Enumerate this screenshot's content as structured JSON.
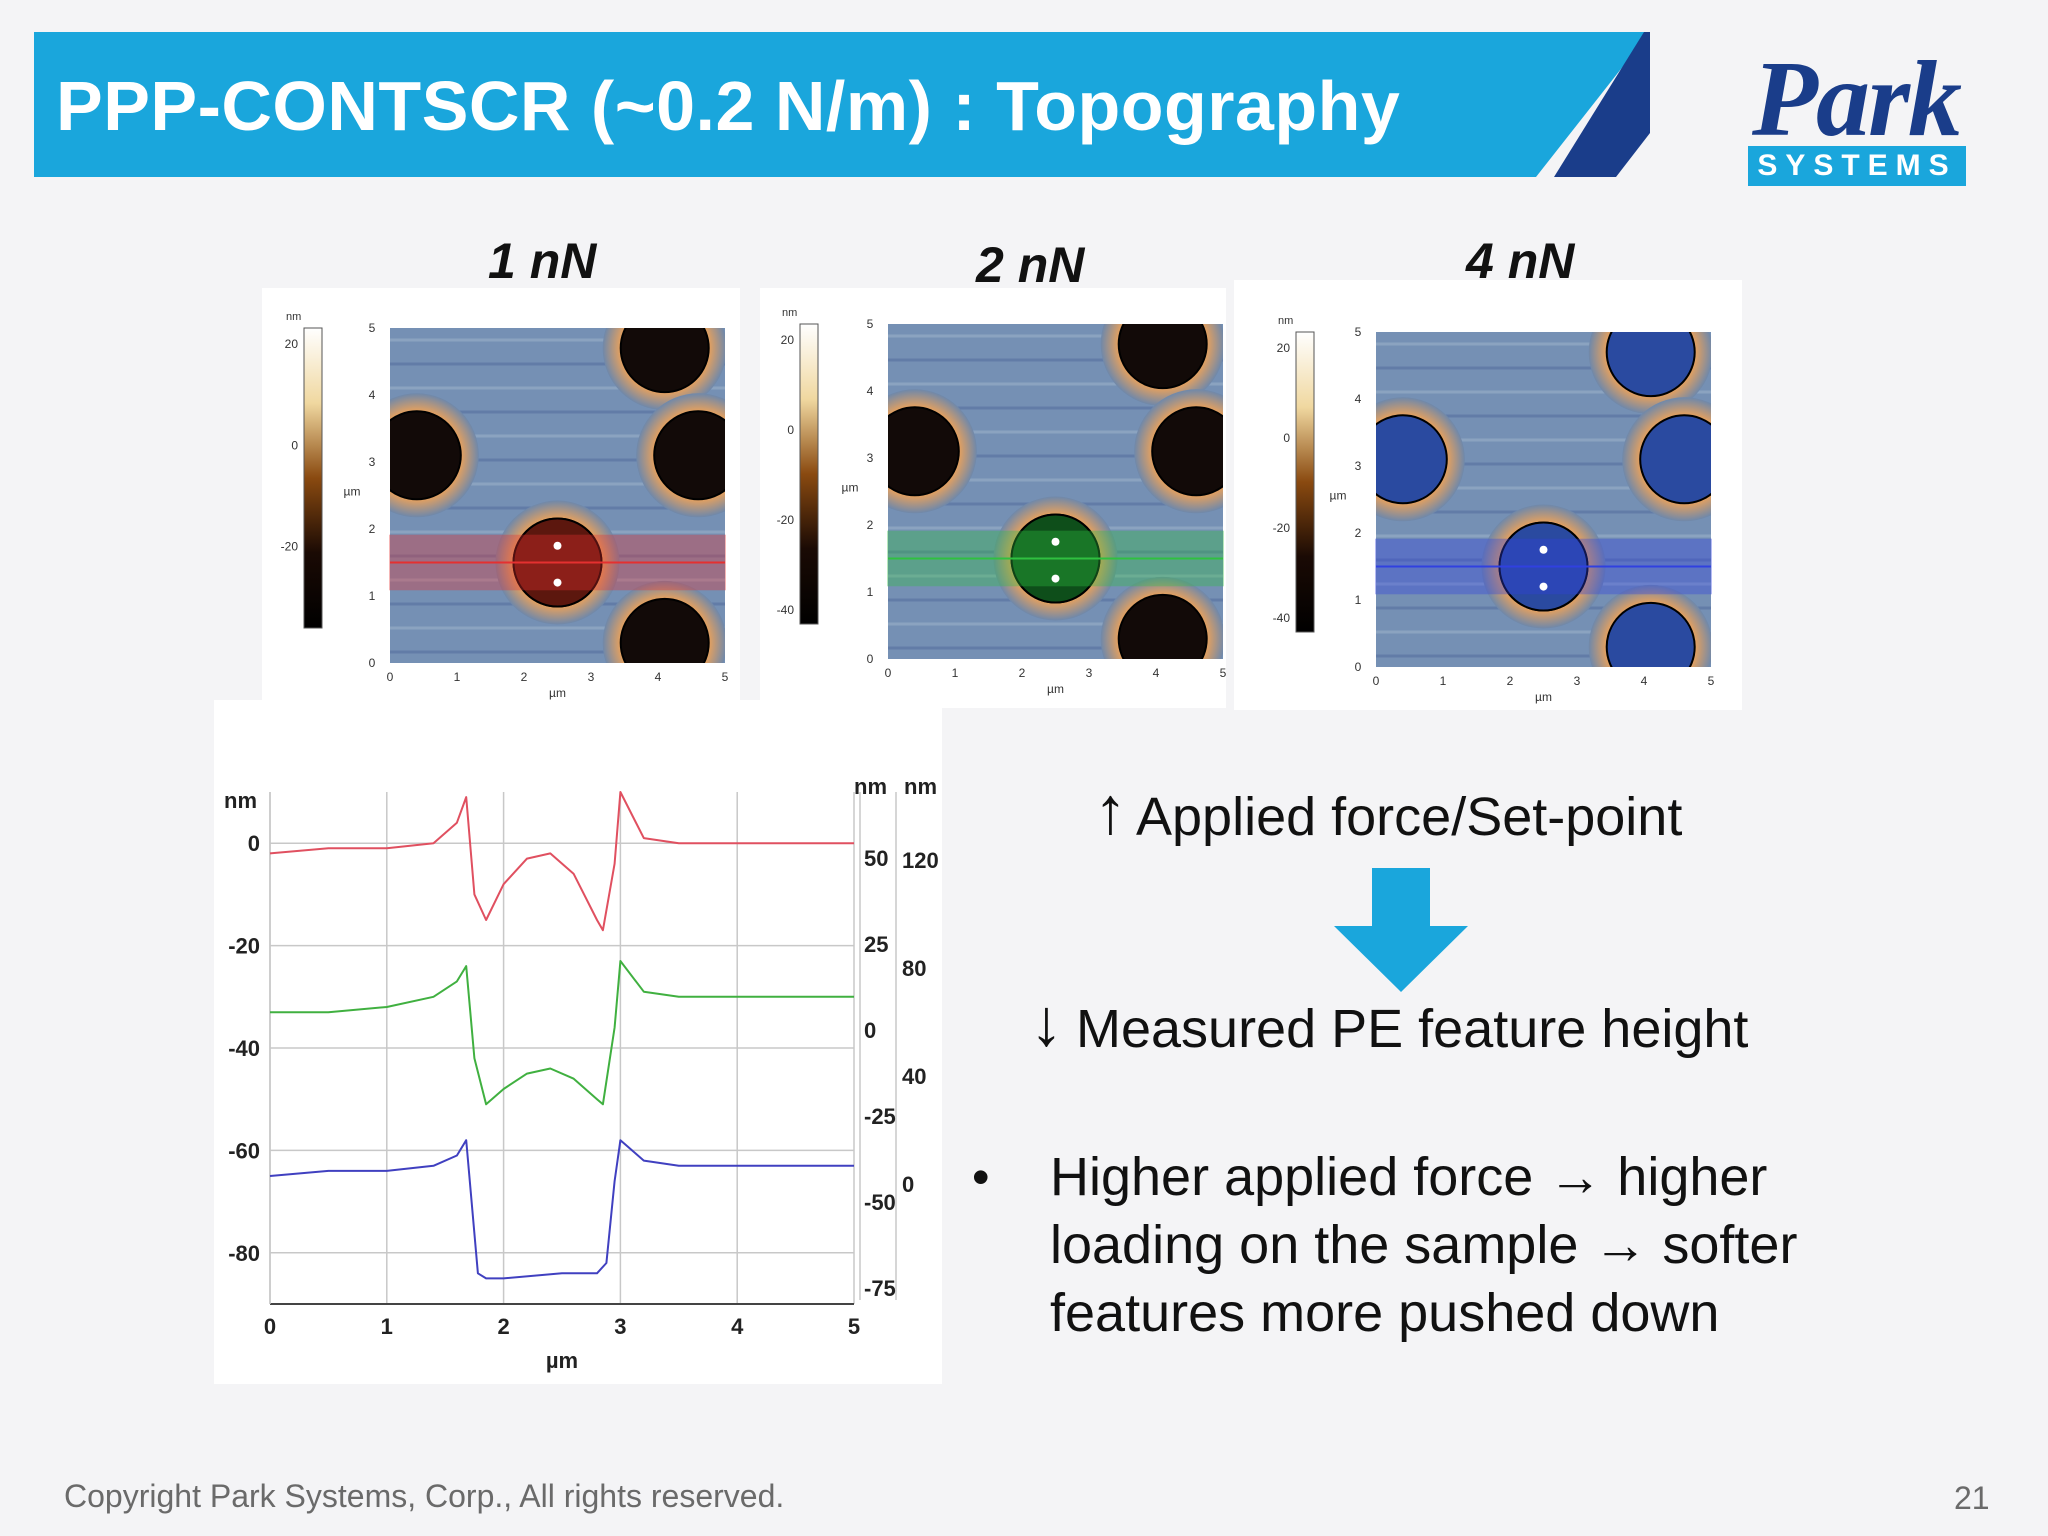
{
  "slide": {
    "title": "PPP-CONTSCR (~0.2 N/m) : Topography",
    "logo": {
      "name": "Park",
      "tagline": "SYSTEMS"
    },
    "force_labels": [
      "1 nN",
      "2 nN",
      "4 nN"
    ],
    "afm_images": [
      {
        "unit": "nm",
        "scale_ticks": [
          "20",
          "0",
          "-20"
        ],
        "axis_unit": "µm",
        "line_color": "#e53030",
        "feature_color": "#6a1a10"
      },
      {
        "unit": "nm",
        "scale_ticks": [
          "20",
          "0",
          "-20",
          "-40"
        ],
        "axis_unit": "µm",
        "line_color": "#30c040",
        "feature_color": "#0e5a1e"
      },
      {
        "unit": "nm",
        "scale_ticks": [
          "20",
          "0",
          "-20",
          "-40"
        ],
        "axis_unit": "µm",
        "line_color": "#3040e0",
        "feature_color": "#2a4aa0"
      }
    ],
    "afm_axis_ticks": [
      "0",
      "1",
      "2",
      "3",
      "4",
      "5"
    ],
    "statement1": "Applied force/Set-point",
    "statement2": "Measured PE feature height",
    "bullet": "Higher applied force → higher loading on the sample → softer features more pushed down",
    "bullet_lines": [
      "Higher applied force → higher",
      "loading on the sample → softer",
      "features more pushed down"
    ],
    "footer": "Copyright Park Systems, Corp., All rights reserved.",
    "page_number": "21"
  },
  "chart_data": {
    "type": "line",
    "xlabel": "µm",
    "ylabel": "nm",
    "xlim": [
      0,
      5
    ],
    "ylim": [
      -90,
      10
    ],
    "x_ticks": [
      "0",
      "1",
      "2",
      "3",
      "4",
      "5"
    ],
    "y_ticks": [
      "0",
      "-20",
      "-40",
      "-60",
      "-80"
    ],
    "right_axis1": {
      "label": "nm",
      "ticks": [
        "50",
        "25",
        "0",
        "-25",
        "-50",
        "-75"
      ]
    },
    "right_axis2": {
      "label": "nm",
      "ticks": [
        "120",
        "80",
        "40",
        "0"
      ]
    },
    "grid": true,
    "legend": "none",
    "series": [
      {
        "color": "#e05060",
        "x": [
          0,
          0.5,
          1.0,
          1.4,
          1.6,
          1.68,
          1.75,
          1.85,
          2.0,
          2.2,
          2.4,
          2.6,
          2.8,
          2.85,
          2.95,
          3.0,
          3.2,
          3.5,
          4.0,
          4.5,
          5.0
        ],
        "y": [
          -2,
          -1,
          -1,
          0,
          4,
          9,
          -10,
          -15,
          -8,
          -3,
          -2,
          -6,
          -15,
          -17,
          -4,
          10,
          1,
          0,
          0,
          0,
          0
        ]
      },
      {
        "color": "#40b040",
        "x": [
          0,
          0.5,
          1.0,
          1.4,
          1.6,
          1.68,
          1.75,
          1.85,
          2.0,
          2.2,
          2.4,
          2.6,
          2.8,
          2.85,
          2.95,
          3.0,
          3.2,
          3.5,
          4.0,
          4.5,
          5.0
        ],
        "y": [
          -33,
          -33,
          -32,
          -30,
          -27,
          -24,
          -42,
          -51,
          -48,
          -45,
          -44,
          -46,
          -50,
          -51,
          -36,
          -23,
          -29,
          -30,
          -30,
          -30,
          -30
        ]
      },
      {
        "color": "#4040c0",
        "x": [
          0,
          0.5,
          1.0,
          1.4,
          1.6,
          1.68,
          1.78,
          1.85,
          2.0,
          2.5,
          2.8,
          2.88,
          2.95,
          3.0,
          3.2,
          3.5,
          4.0,
          4.5,
          5.0
        ],
        "y": [
          -65,
          -64,
          -64,
          -63,
          -61,
          -58,
          -84,
          -85,
          -85,
          -84,
          -84,
          -82,
          -66,
          -58,
          -62,
          -63,
          -63,
          -63,
          -63
        ]
      }
    ]
  }
}
